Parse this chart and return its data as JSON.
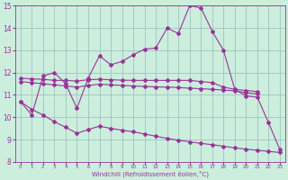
{
  "xlabel": "Windchill (Refroidissement éolien,°C)",
  "x_values": [
    0,
    1,
    2,
    3,
    4,
    5,
    6,
    7,
    8,
    9,
    10,
    11,
    12,
    13,
    14,
    15,
    16,
    17,
    18,
    19,
    20,
    21,
    22,
    23
  ],
  "line1_y": [
    10.7,
    10.1,
    11.85,
    12.0,
    11.5,
    10.4,
    11.75,
    12.75,
    12.35,
    12.5,
    12.8,
    13.05,
    13.1,
    14.0,
    13.75,
    15.0,
    14.9,
    13.85,
    13.0,
    11.25,
    10.95,
    10.9,
    9.75,
    8.55
  ],
  "line2_x": [
    0,
    1,
    2,
    3,
    4,
    5,
    6,
    7,
    8,
    9,
    10,
    11,
    12,
    13,
    14,
    15,
    16,
    17,
    18,
    19,
    20,
    21
  ],
  "line2_y": [
    11.75,
    11.72,
    11.7,
    11.65,
    11.65,
    11.62,
    11.68,
    11.7,
    11.68,
    11.66,
    11.65,
    11.65,
    11.65,
    11.65,
    11.65,
    11.65,
    11.6,
    11.55,
    11.35,
    11.25,
    11.2,
    11.15
  ],
  "line3_x": [
    0,
    1,
    2,
    3,
    4,
    5,
    6,
    7,
    8,
    9,
    10,
    11,
    12,
    13,
    14,
    15,
    16,
    17,
    18,
    19,
    20,
    21
  ],
  "line3_y": [
    11.6,
    11.55,
    11.5,
    11.45,
    11.4,
    11.35,
    11.42,
    11.48,
    11.45,
    11.43,
    11.4,
    11.38,
    11.36,
    11.35,
    11.33,
    11.3,
    11.28,
    11.25,
    11.22,
    11.18,
    11.1,
    11.05
  ],
  "line4_y": [
    10.7,
    10.35,
    10.1,
    9.8,
    9.55,
    9.28,
    9.45,
    9.6,
    9.5,
    9.42,
    9.35,
    9.25,
    9.15,
    9.05,
    8.97,
    8.9,
    8.83,
    8.77,
    8.7,
    8.63,
    8.57,
    8.52,
    8.47,
    8.42
  ],
  "ylim": [
    8,
    15
  ],
  "yticks": [
    8,
    9,
    10,
    11,
    12,
    13,
    14,
    15
  ],
  "line_color": "#993399",
  "bg_color": "#cceedd",
  "grid_color": "#99bbbb"
}
